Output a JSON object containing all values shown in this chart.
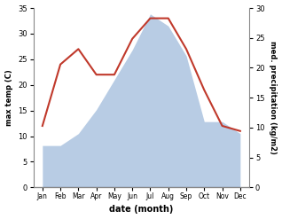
{
  "months": [
    "Jan",
    "Feb",
    "Mar",
    "Apr",
    "May",
    "Jun",
    "Jul",
    "Aug",
    "Sep",
    "Oct",
    "Nov",
    "Dec"
  ],
  "temp": [
    12,
    24,
    27,
    22,
    22,
    29,
    33,
    33,
    27,
    19,
    12,
    11
  ],
  "precip": [
    7,
    7,
    9,
    13,
    18,
    23,
    29,
    27,
    22,
    11,
    11,
    9
  ],
  "temp_color": "#c0392b",
  "precip_color": "#b8cce4",
  "left_ylabel": "max temp (C)",
  "right_ylabel": "med. precipitation (kg/m2)",
  "xlabel": "date (month)",
  "left_ylim": [
    0,
    35
  ],
  "right_ylim": [
    0,
    30
  ],
  "left_yticks": [
    0,
    5,
    10,
    15,
    20,
    25,
    30,
    35
  ],
  "right_yticks": [
    0,
    5,
    10,
    15,
    20,
    25,
    30
  ],
  "bg_color": "#ffffff",
  "axis_color": "#888888"
}
